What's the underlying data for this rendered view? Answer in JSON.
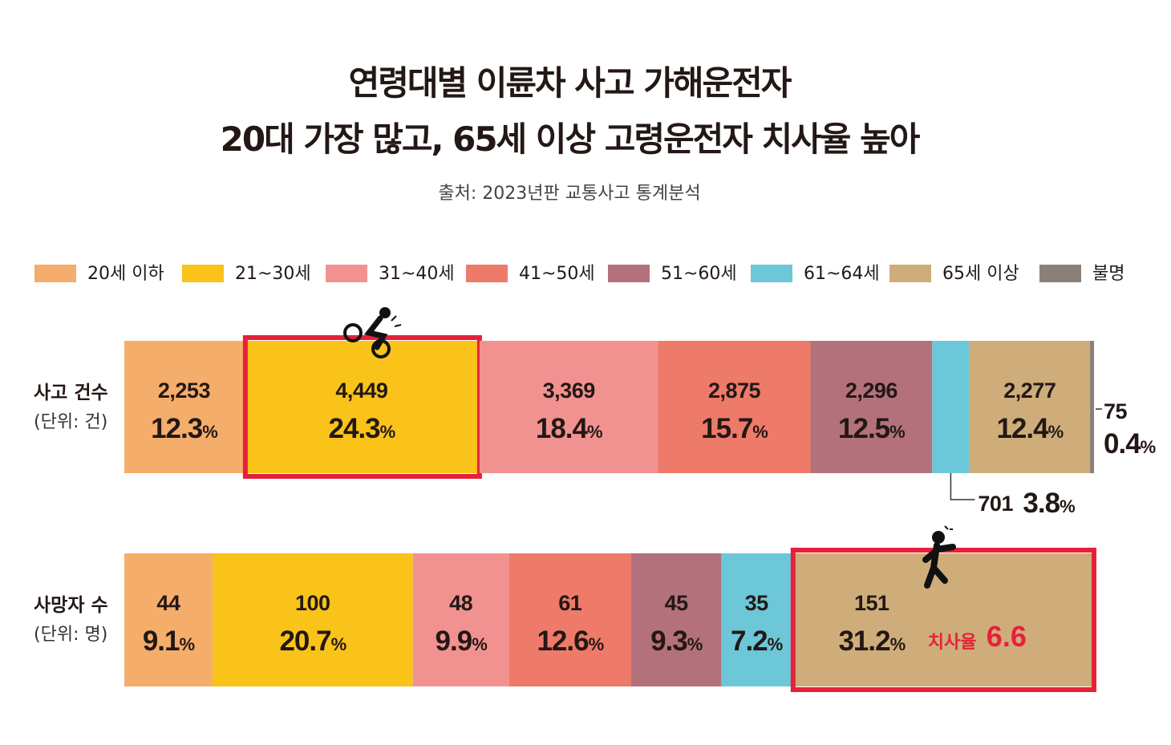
{
  "chart_data": {
    "type": "stacked_bar_100",
    "title": [
      "연령대별 이륜차 사고 가해운전자",
      "20대 가장 많고, 65세 이상 고령운전자 치사율 높아"
    ],
    "subtitle": "출처: 2023년판 교통사고 통계분석",
    "categories": [
      "사고 건수",
      "사망자 수"
    ],
    "units": [
      "(단위: 건)",
      "(단위: 명)"
    ],
    "percent_sign": "%",
    "series": [
      {
        "name": "20세 이하",
        "color": "#f5ad6b",
        "values": [
          2253,
          44
        ],
        "value_labels": [
          "2,253",
          "44"
        ],
        "shares": [
          12.3,
          9.1
        ]
      },
      {
        "name": "21~30세",
        "color": "#f9c31a",
        "values": [
          4449,
          100
        ],
        "value_labels": [
          "4,449",
          "100"
        ],
        "shares": [
          24.3,
          20.7
        ]
      },
      {
        "name": "31~40세",
        "color": "#f29290",
        "values": [
          3369,
          48
        ],
        "value_labels": [
          "3,369",
          "48"
        ],
        "shares": [
          18.4,
          9.9
        ]
      },
      {
        "name": "41~50세",
        "color": "#ee7a69",
        "values": [
          2875,
          61
        ],
        "value_labels": [
          "2,875",
          "61"
        ],
        "shares": [
          15.7,
          12.6
        ]
      },
      {
        "name": "51~60세",
        "color": "#b3717c",
        "values": [
          2296,
          45
        ],
        "value_labels": [
          "2,296",
          "45"
        ],
        "shares": [
          12.5,
          9.3
        ]
      },
      {
        "name": "61~64세",
        "color": "#6cc7d8",
        "values": [
          701,
          35
        ],
        "value_labels": [
          "701",
          "35"
        ],
        "shares": [
          3.8,
          7.2
        ]
      },
      {
        "name": "65세 이상",
        "color": "#cfad7a",
        "values": [
          2277,
          151
        ],
        "value_labels": [
          "2,277",
          "151"
        ],
        "shares": [
          12.4,
          31.2
        ]
      },
      {
        "name": "불명",
        "color": "#8b8078",
        "values": [
          75,
          null
        ],
        "value_labels": [
          "75",
          null
        ],
        "shares": [
          0.4,
          null
        ]
      }
    ],
    "annotation": {
      "label": "치사율",
      "value": 6.6
    }
  }
}
